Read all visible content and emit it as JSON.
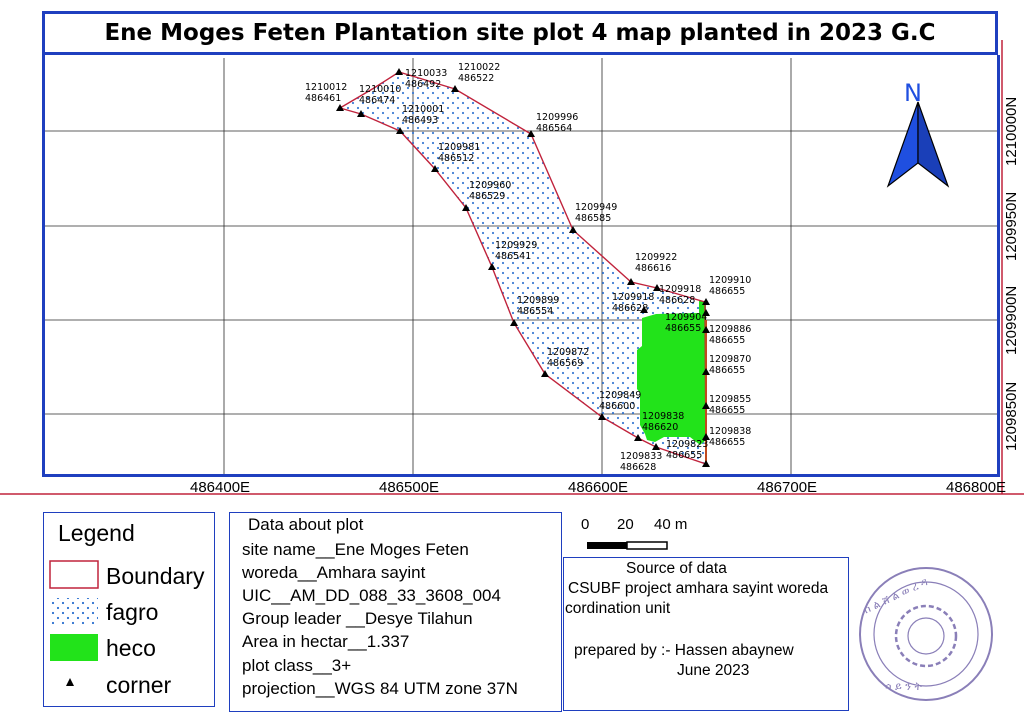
{
  "title": "Ene Moges Feten Plantation site plot 4 map planted in 2023 G.C",
  "north_arrow": {
    "label": "N",
    "color": "#1f4fe0"
  },
  "colors": {
    "boundary": "#c0233c",
    "fagro_dot": "#2a6fd0",
    "heco": "#22e31a",
    "frame": "#1f3fbf",
    "grid": "#2a2a2a"
  },
  "grid_labels": {
    "x": [
      "486400E",
      "486500E",
      "486600E",
      "486700E",
      "486800E"
    ],
    "y": [
      "1210000N",
      "1209950N",
      "1209900N",
      "1209850N"
    ]
  },
  "corners": [
    {
      "n": "1210033",
      "e": "486492"
    },
    {
      "n": "1210022",
      "e": "486522"
    },
    {
      "n": "1210012",
      "e": "486461"
    },
    {
      "n": "1210010",
      "e": "486474"
    },
    {
      "n": "1210001",
      "e": "486493"
    },
    {
      "n": "1209996",
      "e": "486564"
    },
    {
      "n": "1209981",
      "e": "486512"
    },
    {
      "n": "1209960",
      "e": "486529"
    },
    {
      "n": "1209949",
      "e": "486585"
    },
    {
      "n": "1209929",
      "e": "486541"
    },
    {
      "n": "1209922",
      "e": "486616"
    },
    {
      "n": "1209918",
      "e": "486628"
    },
    {
      "n": "1209918",
      "e": "486628"
    },
    {
      "n": "1209910",
      "e": "486655"
    },
    {
      "n": "1209904",
      "e": "486655"
    },
    {
      "n": "1209899",
      "e": "486554"
    },
    {
      "n": "1209886",
      "e": "486655"
    },
    {
      "n": "1209872",
      "e": "486569"
    },
    {
      "n": "1209870",
      "e": "486655"
    },
    {
      "n": "1209855",
      "e": "486655"
    },
    {
      "n": "1209849",
      "e": "486600"
    },
    {
      "n": "1209838",
      "e": "486620"
    },
    {
      "n": "1209838",
      "e": "486655"
    },
    {
      "n": "1209823",
      "e": "486655"
    },
    {
      "n": "1209833",
      "e": "486628"
    }
  ],
  "legend": {
    "title": "Legend",
    "items": [
      {
        "label": "Boundary"
      },
      {
        "label": "fagro"
      },
      {
        "label": "heco"
      },
      {
        "label": "corner"
      }
    ]
  },
  "plot_data": {
    "heading": "Data about plot",
    "lines": [
      "site name__Ene Moges Feten",
      "woreda__Amhara sayint",
      "UIC__AM_DD_088_33_3608_004",
      "Group leader __Desye Tilahun",
      "Area in hectar__1.337",
      "plot class__3+",
      "projection__WGS 84 UTM zone 37N"
    ]
  },
  "scale_bar": {
    "labels": [
      "0",
      "20",
      "40 m"
    ]
  },
  "source": {
    "heading": "Source of data",
    "line1": "CSUBF project amhara sayint woreda",
    "line2": "cordination unit",
    "prepared_by": "prepared by :- Hassen abaynew",
    "date": "June 2023"
  }
}
